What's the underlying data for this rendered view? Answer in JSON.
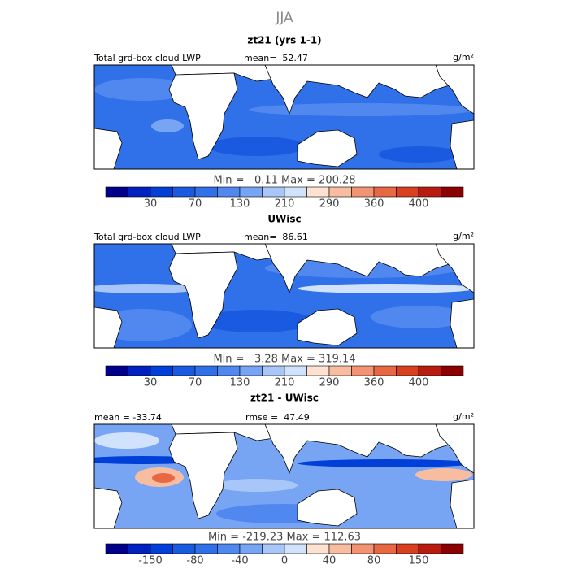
{
  "title": "JJA",
  "colorbar_colors": [
    "#00008b",
    "#0020c0",
    "#0040d8",
    "#1a5ae0",
    "#3070e8",
    "#5088f0",
    "#78a4f4",
    "#a8c6f8",
    "#d0e2fc",
    "#fde2d2",
    "#f8bca0",
    "#f29474",
    "#e86844",
    "#d8401f",
    "#b81c10",
    "#8b0000"
  ],
  "panels": [
    {
      "title": "zt21 (yrs 1-1)",
      "stat_left": "Total grd-box cloud LWP",
      "stat_center": "mean=  52.47",
      "units": "g/m²",
      "range_text": "Min =   0.11 Max = 200.28",
      "tick_labels": [
        "30",
        "70",
        "130",
        "210",
        "290",
        "360",
        "400"
      ]
    },
    {
      "title": "UWisc",
      "stat_left": "Total grd-box cloud LWP",
      "stat_center": "mean=  86.61",
      "units": "g/m²",
      "range_text": "Min =   3.28 Max = 319.14",
      "tick_labels": [
        "30",
        "70",
        "130",
        "210",
        "290",
        "360",
        "400"
      ]
    },
    {
      "title": "zt21 - UWisc",
      "stat_left": "mean = -33.74",
      "stat_center": "rmse =  47.49",
      "units": "g/m²",
      "range_text": "Min = -219.23 Max = 112.63",
      "tick_labels": [
        "-150",
        "-80",
        "-40",
        "0",
        "40",
        "80",
        "150"
      ]
    }
  ]
}
